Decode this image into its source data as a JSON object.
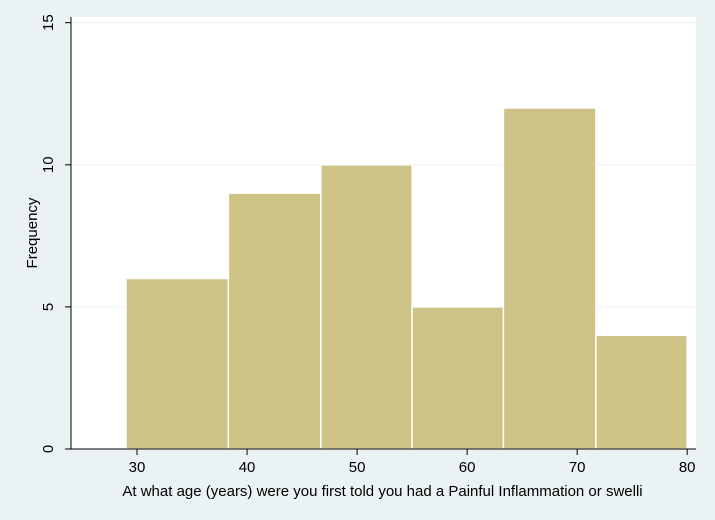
{
  "chart_data": {
    "type": "bar",
    "subtype": "histogram",
    "bins": [
      {
        "start": 29.0,
        "end": 38.3,
        "value": 6
      },
      {
        "start": 38.3,
        "end": 46.7,
        "value": 9
      },
      {
        "start": 46.7,
        "end": 55.0,
        "value": 10
      },
      {
        "start": 55.0,
        "end": 63.3,
        "value": 5
      },
      {
        "start": 63.3,
        "end": 71.7,
        "value": 12
      },
      {
        "start": 71.7,
        "end": 80.0,
        "value": 4
      }
    ],
    "xlabel": "At what age (years) were you first told you had a Painful Inflammation or swelli",
    "ylabel": "Frequency",
    "xlim": [
      24.0,
      80.8
    ],
    "ylim": [
      0,
      15.2
    ],
    "xticks": [
      30,
      40,
      50,
      60,
      70,
      80
    ],
    "yticks": [
      0,
      5,
      10,
      15
    ],
    "grid": "horizontal",
    "colors": {
      "bar_fill": "#cdc387",
      "bar_stroke": "#ffffff",
      "background": "#eaf2f3",
      "plot_area": "#ffffff",
      "grid": "#eaf2f3"
    }
  }
}
